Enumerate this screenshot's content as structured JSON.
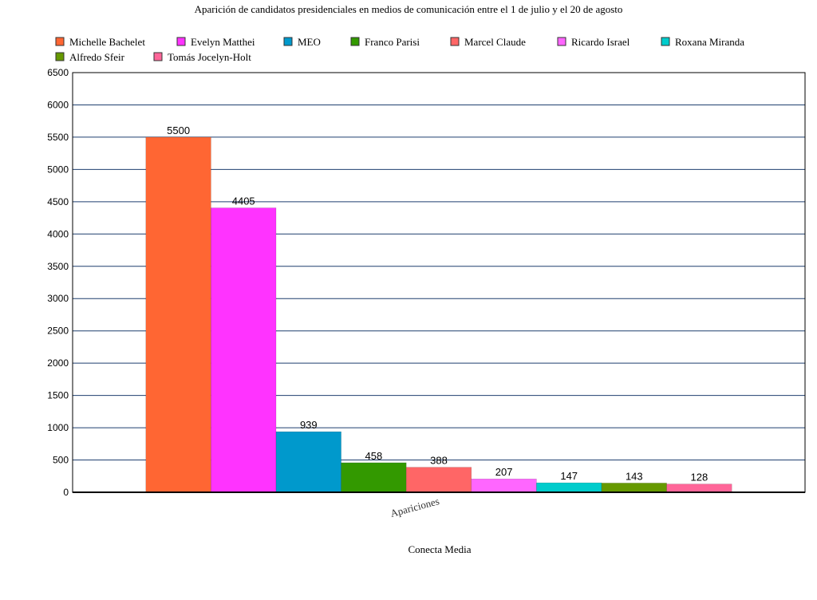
{
  "chart_data": {
    "type": "bar",
    "title": "Aparición de candidatos presidenciales en medios de comunicación entre el 1 de julio y el 20 de agosto",
    "xlabel": "Conecta Media",
    "ylabel": "",
    "categories": [
      "Apariciones"
    ],
    "ylim": [
      0,
      6500
    ],
    "yticks": [
      0,
      500,
      1000,
      1500,
      2000,
      2500,
      3000,
      3500,
      4000,
      4500,
      5000,
      5500,
      6000,
      6500
    ],
    "grid": true,
    "legend_position": "top",
    "series": [
      {
        "name": "Michelle Bachelet",
        "values": [
          5500
        ],
        "color": "#FF6633"
      },
      {
        "name": "Evelyn Matthei",
        "values": [
          4405
        ],
        "color": "#FF33FF"
      },
      {
        "name": "MEO",
        "values": [
          939
        ],
        "color": "#0099CC"
      },
      {
        "name": "Franco Parisi",
        "values": [
          458
        ],
        "color": "#339900"
      },
      {
        "name": "Marcel Claude",
        "values": [
          388
        ],
        "color": "#FF6666"
      },
      {
        "name": "Ricardo Israel",
        "values": [
          207
        ],
        "color": "#FF66FF"
      },
      {
        "name": "Roxana Miranda",
        "values": [
          147
        ],
        "color": "#00CCCC"
      },
      {
        "name": "Alfredo Sfeir",
        "values": [
          143
        ],
        "color": "#669900"
      },
      {
        "name": "Tomás Jocelyn-Holt",
        "values": [
          128
        ],
        "color": "#FF6699"
      }
    ]
  }
}
